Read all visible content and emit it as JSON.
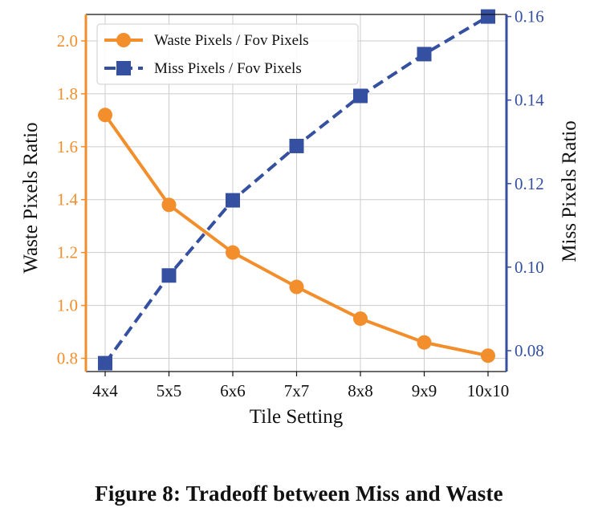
{
  "chart_data": {
    "type": "line",
    "title": "",
    "xlabel": "Tile Setting",
    "ylabel": "Waste Pixels Ratio",
    "y2label": "Miss Pixels Ratio",
    "categories": [
      "4x4",
      "5x5",
      "6x6",
      "7x7",
      "8x8",
      "9x9",
      "10x10"
    ],
    "ylim": [
      0.75,
      2.1
    ],
    "y2lim": [
      0.075,
      0.1605
    ],
    "yticks": [
      0.8,
      1.0,
      1.2,
      1.4,
      1.6,
      1.8,
      2.0
    ],
    "y2ticks": [
      0.08,
      0.1,
      0.12,
      0.14,
      0.16
    ],
    "grid": true,
    "legend_position": "top-left",
    "series": [
      {
        "name": "Waste Pixels / Fov Pixels",
        "axis": "left",
        "color": "#f28e2b",
        "marker": "circle",
        "line_style": "solid",
        "values": [
          1.72,
          1.38,
          1.2,
          1.07,
          0.95,
          0.86,
          0.81
        ]
      },
      {
        "name": "Miss Pixels / Fov Pixels",
        "axis": "right",
        "color": "#3550a0",
        "marker": "square",
        "line_style": "dashed",
        "values": [
          0.077,
          0.098,
          0.116,
          0.129,
          0.141,
          0.151,
          0.16
        ]
      }
    ]
  },
  "caption": "Figure 8: Tradeoff between Miss and Waste"
}
